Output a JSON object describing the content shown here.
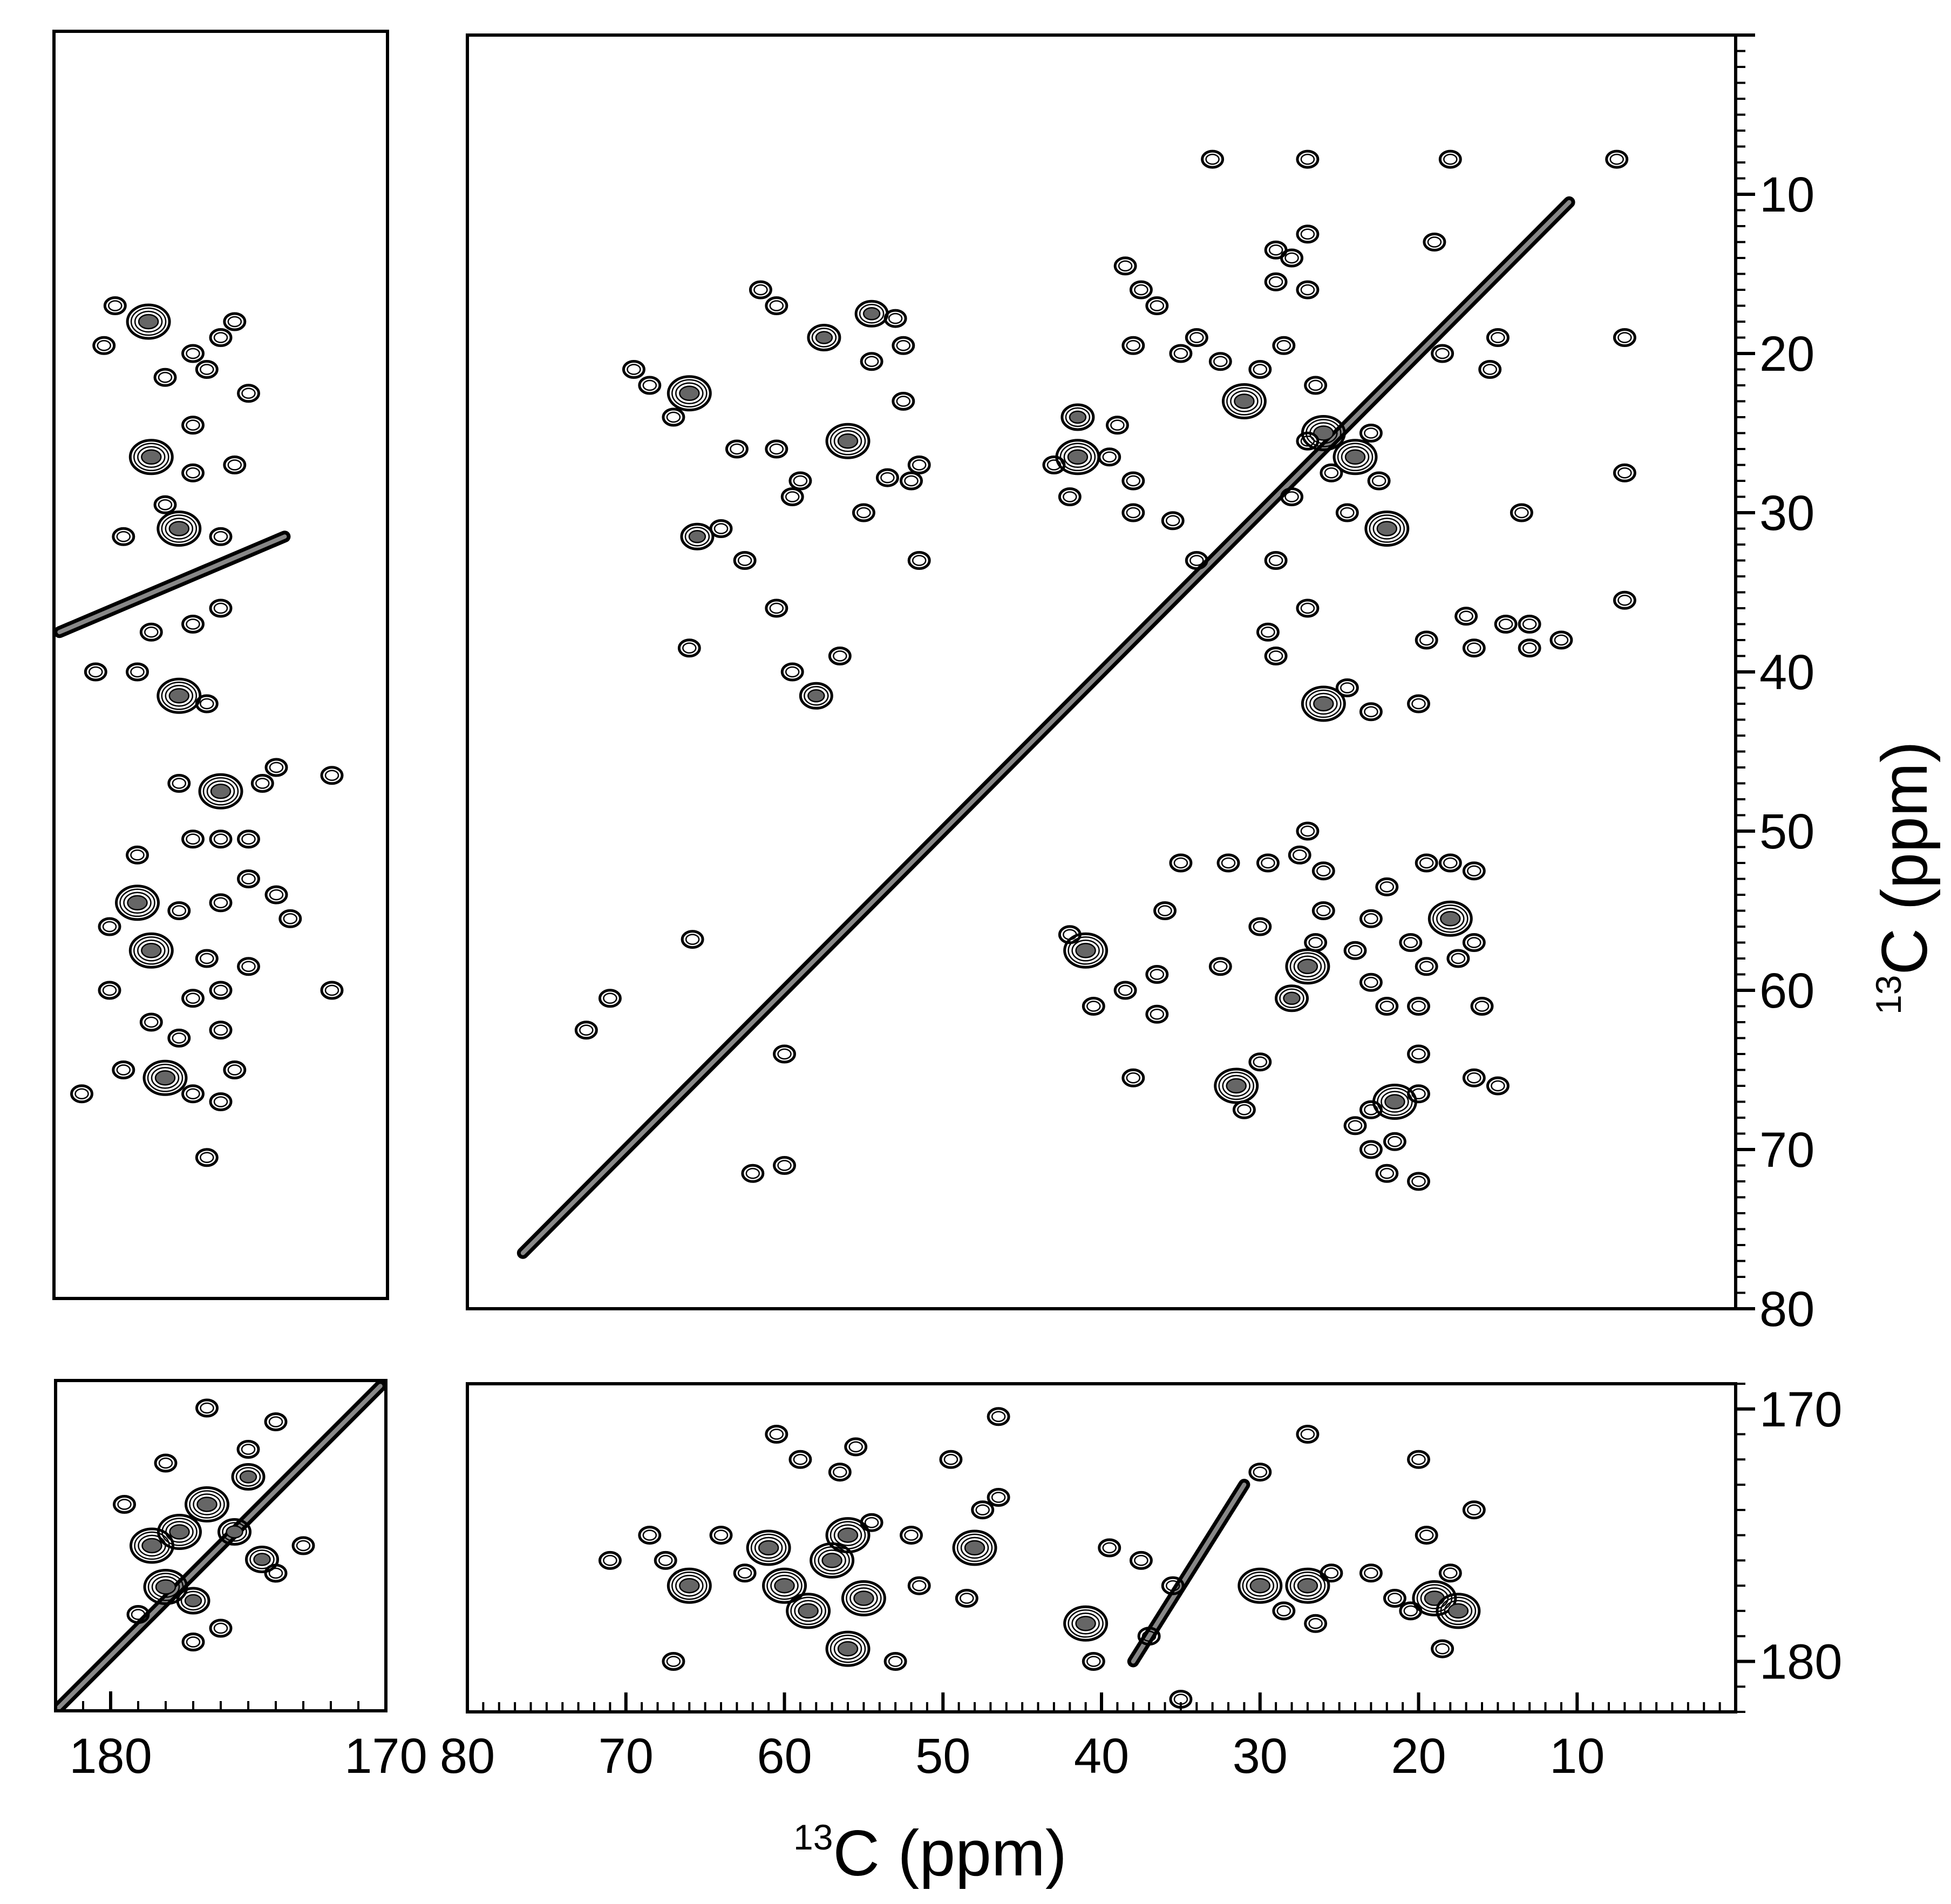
{
  "chart_data": [
    {
      "type": "scatter",
      "panel": "main-aliphatic",
      "xlabel": {
        "isotope": "13",
        "text": "C (ppm)"
      },
      "ylabel": {
        "isotope": "13",
        "text": "C (ppm)"
      },
      "xlim": [
        80,
        0
      ],
      "ylim": [
        0,
        80
      ],
      "xticks": [
        "80",
        "70",
        "60",
        "50",
        "40",
        "30",
        "20",
        "10"
      ],
      "yticks": [
        "10",
        "20",
        "30",
        "40",
        "50",
        "60",
        "70",
        "80"
      ],
      "diagonal": {
        "from": [
          76.5,
          76.5
        ],
        "to": [
          10.5,
          10.5
        ]
      },
      "peaks": [
        [
          66,
          22.5,
          3
        ],
        [
          68.5,
          22
        ],
        [
          69.5,
          21
        ],
        [
          67,
          24
        ],
        [
          65.5,
          31.5,
          2
        ],
        [
          66,
          38.5
        ],
        [
          65.8,
          56.8
        ],
        [
          71,
          60.5
        ],
        [
          72.5,
          62.5
        ],
        [
          57.5,
          19,
          2
        ],
        [
          56,
          25.5,
          3
        ],
        [
          59,
          28
        ],
        [
          58,
          41.5,
          2
        ],
        [
          56.5,
          39
        ],
        [
          61.5,
          16
        ],
        [
          60.5,
          17
        ],
        [
          54.5,
          17.5,
          2
        ],
        [
          53,
          17.8
        ],
        [
          52.5,
          19.5
        ],
        [
          54.5,
          20.5
        ],
        [
          52.5,
          23
        ],
        [
          51.5,
          27
        ],
        [
          52,
          28
        ],
        [
          53.5,
          27.8
        ],
        [
          51.5,
          33
        ],
        [
          55,
          30
        ],
        [
          60.5,
          26
        ],
        [
          59.5,
          29
        ],
        [
          63,
          26
        ],
        [
          64,
          31
        ],
        [
          62.5,
          33
        ],
        [
          60.5,
          36
        ],
        [
          59.5,
          40
        ],
        [
          60,
          64
        ],
        [
          62,
          71.5
        ],
        [
          60,
          71
        ],
        [
          41.5,
          24,
          2
        ],
        [
          41.5,
          26.5,
          3
        ],
        [
          42,
          29
        ],
        [
          39,
          24.5
        ],
        [
          39.5,
          26.5
        ],
        [
          38,
          28
        ],
        [
          43,
          27
        ],
        [
          38.5,
          14.5
        ],
        [
          36.5,
          17
        ],
        [
          37.5,
          16
        ],
        [
          38,
          19.5
        ],
        [
          35,
          20
        ],
        [
          34,
          19
        ],
        [
          32.5,
          20.5
        ],
        [
          38,
          30
        ],
        [
          35.5,
          30.5
        ],
        [
          34,
          33
        ],
        [
          31,
          23,
          3
        ],
        [
          30,
          21
        ],
        [
          29,
          15.5
        ],
        [
          28,
          14
        ],
        [
          27,
          12.5
        ],
        [
          29,
          13.5
        ],
        [
          27,
          16
        ],
        [
          28.5,
          19.5
        ],
        [
          26.5,
          22
        ],
        [
          26,
          25,
          3
        ],
        [
          24,
          26.5,
          3
        ],
        [
          23,
          25
        ],
        [
          27,
          25.5
        ],
        [
          25.5,
          27.5
        ],
        [
          22,
          31,
          3
        ],
        [
          22.5,
          28
        ],
        [
          24.5,
          30
        ],
        [
          28,
          29
        ],
        [
          29,
          33
        ],
        [
          27,
          36
        ],
        [
          29.5,
          37.5
        ],
        [
          26,
          42,
          3
        ],
        [
          24.5,
          41
        ],
        [
          23,
          42.5
        ],
        [
          20,
          42
        ],
        [
          29,
          39
        ],
        [
          19,
          13
        ],
        [
          18.5,
          20
        ],
        [
          17,
          36.5
        ],
        [
          19.5,
          38
        ],
        [
          16.5,
          38.5
        ],
        [
          13.5,
          30
        ],
        [
          14.5,
          37
        ],
        [
          15,
          19
        ],
        [
          15.5,
          21
        ],
        [
          13,
          38.5
        ],
        [
          41,
          57.5,
          3
        ],
        [
          42,
          56.5
        ],
        [
          40.5,
          61
        ],
        [
          38.5,
          60
        ],
        [
          36.5,
          61.5
        ],
        [
          38,
          65.5
        ],
        [
          36.5,
          59
        ],
        [
          32.5,
          58.5
        ],
        [
          30,
          56
        ],
        [
          27,
          58.5,
          3
        ],
        [
          28,
          60.5,
          2
        ],
        [
          26.5,
          57
        ],
        [
          24,
          57.5
        ],
        [
          23,
          59.5
        ],
        [
          22,
          61
        ],
        [
          31.5,
          66,
          3
        ],
        [
          30,
          64.5
        ],
        [
          31,
          67.5
        ],
        [
          29.5,
          52
        ],
        [
          27.5,
          51.5
        ],
        [
          27,
          50
        ],
        [
          26,
          52.5
        ],
        [
          26,
          55
        ],
        [
          23,
          55.5
        ],
        [
          22,
          53.5
        ],
        [
          32,
          52
        ],
        [
          35,
          52
        ],
        [
          36,
          55
        ],
        [
          21.5,
          67,
          3
        ],
        [
          23,
          67.5
        ],
        [
          20,
          66.5
        ],
        [
          21.5,
          69.5
        ],
        [
          20,
          72
        ],
        [
          22,
          71.5
        ],
        [
          20,
          64
        ],
        [
          20,
          61
        ],
        [
          19.5,
          58.5
        ],
        [
          17.5,
          58
        ],
        [
          16,
          61
        ],
        [
          18,
          55.5,
          3
        ],
        [
          18,
          52
        ],
        [
          16.5,
          52.5
        ],
        [
          16.5,
          57
        ],
        [
          19.5,
          52
        ],
        [
          20.5,
          57
        ],
        [
          24,
          68.5
        ],
        [
          23,
          70
        ],
        [
          16.5,
          65.5
        ],
        [
          15,
          66
        ],
        [
          7.5,
          7.8
        ],
        [
          27,
          7.8
        ],
        [
          33,
          7.8
        ],
        [
          18,
          7.8
        ],
        [
          7,
          19
        ],
        [
          7,
          27.5
        ],
        [
          7,
          35.5
        ],
        [
          13,
          37
        ],
        [
          11,
          38
        ]
      ]
    },
    {
      "type": "scatter",
      "panel": "left-carbonyl",
      "xlim": [
        182,
        170
      ],
      "ylim": [
        0,
        80
      ],
      "diagonal": {
        "from": [
          181.8,
          37.5
        ],
        "to": [
          173.7,
          31.5
        ]
      },
      "peaks": [
        [
          178.6,
          18,
          3
        ],
        [
          179.8,
          17
        ],
        [
          180.2,
          19.5
        ],
        [
          177,
          20
        ],
        [
          175.5,
          18
        ],
        [
          176,
          19
        ],
        [
          178,
          21.5
        ],
        [
          176.5,
          21
        ],
        [
          175,
          22.5
        ],
        [
          177,
          24.5
        ],
        [
          178.5,
          26.5,
          3
        ],
        [
          177,
          27.5
        ],
        [
          175.5,
          27
        ],
        [
          178,
          29.5
        ],
        [
          177.5,
          31,
          3
        ],
        [
          176,
          31.5
        ],
        [
          179.5,
          31.5
        ],
        [
          178.5,
          37.5
        ],
        [
          177,
          37
        ],
        [
          176,
          36
        ],
        [
          179,
          40
        ],
        [
          177.5,
          41.5,
          3
        ],
        [
          176.5,
          42
        ],
        [
          180.5,
          40
        ],
        [
          176,
          47.5,
          3
        ],
        [
          174.5,
          47
        ],
        [
          177.5,
          47
        ],
        [
          174,
          46
        ],
        [
          172,
          46.5
        ],
        [
          177,
          50.5
        ],
        [
          176,
          50.5
        ],
        [
          175,
          50.5
        ],
        [
          179,
          51.5
        ],
        [
          179,
          54.5,
          3
        ],
        [
          177.5,
          55
        ],
        [
          176,
          54.5
        ],
        [
          175,
          53
        ],
        [
          178.5,
          57.5,
          3
        ],
        [
          176.5,
          58
        ],
        [
          175,
          58.5
        ],
        [
          177,
          60.5
        ],
        [
          176,
          60
        ],
        [
          178.5,
          62
        ],
        [
          177.5,
          63
        ],
        [
          176,
          62.5
        ],
        [
          180,
          60
        ],
        [
          180,
          56
        ],
        [
          173.5,
          55.5
        ],
        [
          174,
          54
        ],
        [
          178,
          65.5,
          3
        ],
        [
          177,
          66.5
        ],
        [
          176,
          67
        ],
        [
          175.5,
          65
        ],
        [
          179.5,
          65
        ],
        [
          181,
          66.5
        ],
        [
          176.5,
          70.5
        ],
        [
          172,
          60
        ]
      ]
    },
    {
      "type": "scatter",
      "panel": "bottom-left-carbonyl-diagonal",
      "xlim": [
        182,
        170
      ],
      "ylim": [
        170,
        182
      ],
      "xticks": [
        "180",
        "170"
      ],
      "diagonal": {
        "from": [
          182,
          182
        ],
        "to": [
          170.2,
          170.2
        ]
      },
      "peaks": [
        [
          178.5,
          176,
          3
        ],
        [
          177.5,
          175.5,
          3
        ],
        [
          176.5,
          174.5,
          3
        ],
        [
          175.5,
          175.5,
          2
        ],
        [
          175,
          173.5,
          2
        ],
        [
          174.5,
          176.5,
          2
        ],
        [
          178,
          177.5,
          3
        ],
        [
          177,
          178,
          2
        ],
        [
          179,
          178.5
        ],
        [
          176,
          179
        ],
        [
          179.5,
          174.5
        ],
        [
          178,
          173
        ],
        [
          175,
          172.5
        ],
        [
          174,
          171.5
        ],
        [
          176.5,
          171
        ],
        [
          173,
          176
        ],
        [
          174,
          177
        ],
        [
          177,
          179.5
        ]
      ]
    },
    {
      "type": "scatter",
      "panel": "bottom-aliphatic-vs-carbonyl",
      "xlim": [
        80,
        0
      ],
      "ylim": [
        169,
        182
      ],
      "yticks": [
        "170",
        "180"
      ],
      "diagonal": {
        "from": [
          38,
          180
        ],
        "to": [
          31,
          173
        ]
      },
      "peaks": [
        [
          66,
          177,
          3
        ],
        [
          67.5,
          176
        ],
        [
          68.5,
          175
        ],
        [
          67,
          180
        ],
        [
          64,
          175
        ],
        [
          62.5,
          176.5
        ],
        [
          61,
          175.5,
          3
        ],
        [
          60,
          177,
          3
        ],
        [
          58.5,
          178,
          3
        ],
        [
          57,
          176,
          3
        ],
        [
          56,
          175,
          3
        ],
        [
          55,
          177.5,
          3
        ],
        [
          56,
          179.5,
          3
        ],
        [
          54.5,
          174.5
        ],
        [
          56.5,
          172.5
        ],
        [
          59,
          172
        ],
        [
          60.5,
          171
        ],
        [
          55.5,
          171.5
        ],
        [
          52,
          175
        ],
        [
          51.5,
          177
        ],
        [
          53,
          180
        ],
        [
          49.5,
          172
        ],
        [
          48,
          175.5,
          3
        ],
        [
          47.5,
          174
        ],
        [
          46.5,
          173.5
        ],
        [
          46.5,
          170.3
        ],
        [
          48.5,
          177.5
        ],
        [
          41,
          178.5,
          3
        ],
        [
          40.5,
          180
        ],
        [
          39.5,
          175.5
        ],
        [
          37.5,
          176
        ],
        [
          35.5,
          177
        ],
        [
          37,
          179
        ],
        [
          30,
          177,
          3
        ],
        [
          28.5,
          178
        ],
        [
          27,
          177,
          3
        ],
        [
          26.5,
          178.5
        ],
        [
          25.5,
          176.5
        ],
        [
          27,
          171
        ],
        [
          23,
          176.5
        ],
        [
          21.5,
          177.5
        ],
        [
          20.5,
          178
        ],
        [
          19,
          177.5,
          3
        ],
        [
          17.5,
          178,
          3
        ],
        [
          18,
          176.5
        ],
        [
          18.5,
          179.5
        ],
        [
          19.5,
          175
        ],
        [
          16.5,
          174
        ],
        [
          20,
          172
        ],
        [
          71,
          176
        ],
        [
          35,
          181.5
        ],
        [
          30,
          172.5
        ]
      ]
    }
  ]
}
